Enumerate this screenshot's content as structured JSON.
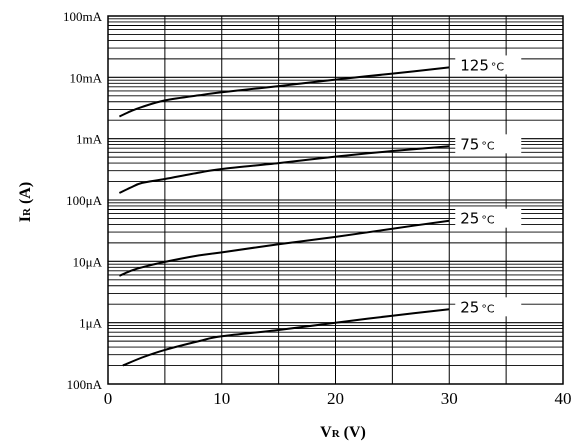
{
  "chart_data": {
    "type": "line",
    "xlabel_main": "V",
    "xlabel_sub": "R",
    "xlabel_unit": " (V)",
    "ylabel_main": "I",
    "ylabel_sub": "R",
    "ylabel_unit": " (A)",
    "xlim": [
      0,
      40
    ],
    "ylim": [
      1e-07,
      0.1
    ],
    "y_scale": "log",
    "grid": true,
    "x_ticks": [
      0,
      10,
      20,
      30,
      40
    ],
    "x_tick_labels": [
      "0",
      "10",
      "20",
      "30",
      "40"
    ],
    "y_ticks": [
      1e-07,
      1e-06,
      1e-05,
      0.0001,
      0.001,
      0.01,
      0.1
    ],
    "y_tick_labels": [
      "100nA",
      "1μA",
      "10μA",
      "100μA",
      "1mA",
      "10mA",
      "100mA"
    ],
    "series": [
      {
        "label_temp": "125",
        "label_unit": "°C",
        "x": [
          1,
          2,
          3,
          5,
          8,
          10,
          15,
          20,
          25,
          30
        ],
        "y": [
          0.0023,
          0.0028,
          0.0033,
          0.0042,
          0.0051,
          0.0057,
          0.0072,
          0.0092,
          0.0115,
          0.0145
        ]
      },
      {
        "label_temp": "75",
        "label_unit": "°C",
        "x": [
          1,
          2,
          3,
          5,
          8,
          10,
          15,
          20,
          25,
          30
        ],
        "y": [
          0.00013,
          0.00016,
          0.00019,
          0.00022,
          0.00028,
          0.00032,
          0.0004,
          0.00051,
          0.00063,
          0.00075
        ]
      },
      {
        "label_temp": "25",
        "label_unit": "°C",
        "x": [
          1,
          2,
          3,
          5,
          8,
          10,
          15,
          20,
          25,
          30
        ],
        "y": [
          5.8e-06,
          7e-06,
          8e-06,
          9.8e-06,
          1.25e-05,
          1.4e-05,
          1.9e-05,
          2.5e-05,
          3.4e-05,
          4.6e-05
        ]
      },
      {
        "label_temp": "25",
        "label_unit": "°C",
        "x": [
          1.3,
          3,
          5,
          8,
          10,
          15,
          20,
          25,
          30
        ],
        "y": [
          2e-07,
          2.7e-07,
          3.6e-07,
          5e-07,
          6e-07,
          7.6e-07,
          1e-06,
          1.3e-06,
          1.65e-06
        ]
      }
    ]
  }
}
